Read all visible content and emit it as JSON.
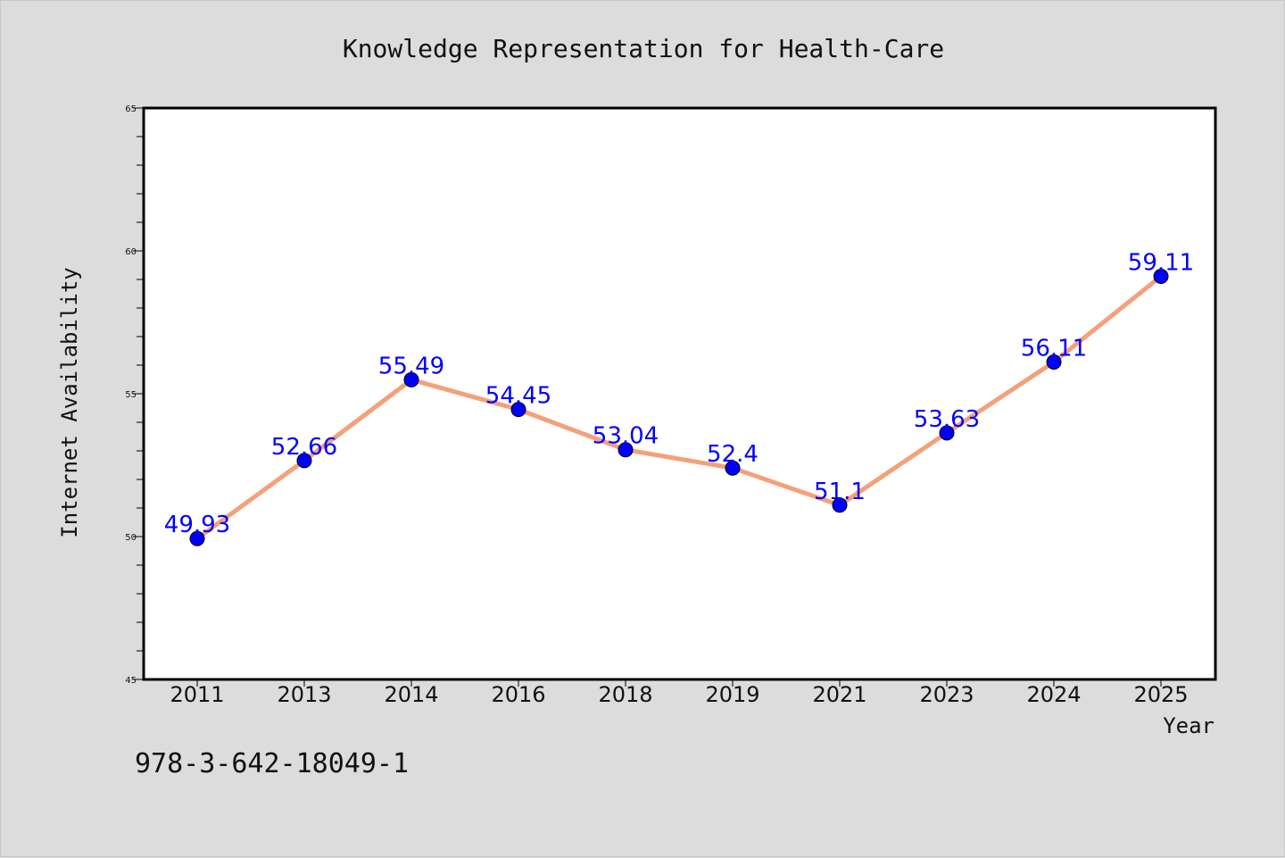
{
  "chart_data": {
    "type": "line",
    "title": "Knowledge Representation for Health-Care",
    "xlabel": "Year",
    "ylabel": "Internet Availability",
    "categories": [
      "2011",
      "2013",
      "2014",
      "2016",
      "2018",
      "2019",
      "2021",
      "2023",
      "2024",
      "2025"
    ],
    "series": [
      {
        "values": [
          49.93,
          52.66,
          55.49,
          54.45,
          53.04,
          52.4,
          51.1,
          53.63,
          56.11,
          59.11
        ],
        "labels": [
          "49.93",
          "52.66",
          "55.49",
          "54.45",
          "53.04",
          "52.4",
          "51.1",
          "53.63",
          "56.11",
          "59.11"
        ],
        "line_color": "#f4a07a",
        "marker_color": "#0000ff"
      }
    ],
    "ylim": [
      45,
      65
    ],
    "yticks": [
      "45",
      "50",
      "55",
      "60",
      "65"
    ],
    "grid": false,
    "legend": "none"
  },
  "footnote": "978-3-642-18049-1",
  "colors": {
    "background": "#dcdcdc",
    "plot_background": "#ffffff",
    "line": "#f4a07a",
    "marker": "#0000ff",
    "data_label": "#0000ff"
  }
}
